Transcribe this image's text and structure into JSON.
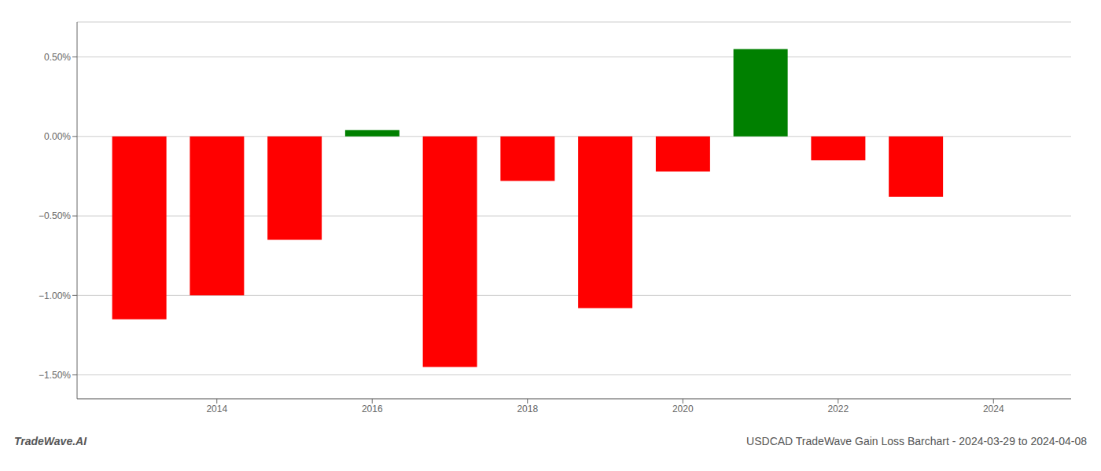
{
  "chart_data": {
    "type": "bar",
    "title": "USDCAD TradeWave Gain Loss Barchart - 2024-03-29 to 2024-04-08",
    "annotations": [
      "TradeWave.AI"
    ],
    "x": [
      2013,
      2014,
      2015,
      2016,
      2017,
      2018,
      2019,
      2020,
      2021,
      2022,
      2023
    ],
    "values": [
      -1.15,
      -1.0,
      -0.65,
      0.04,
      -1.45,
      -0.28,
      -1.08,
      -0.22,
      0.55,
      -0.15,
      -0.38
    ],
    "colors": [
      "#ff0000",
      "#ff0000",
      "#ff0000",
      "#008000",
      "#ff0000",
      "#ff0000",
      "#ff0000",
      "#ff0000",
      "#008000",
      "#ff0000",
      "#ff0000"
    ],
    "xlim": [
      2012.2,
      2025.0
    ],
    "xticks": [
      2014,
      2016,
      2018,
      2020,
      2022,
      2024
    ],
    "ylim": [
      -1.65,
      0.72
    ],
    "yticks": [
      {
        "value": -1.5,
        "label": "−1.50%"
      },
      {
        "value": -1.0,
        "label": "−1.00%"
      },
      {
        "value": -0.5,
        "label": "−0.50%"
      },
      {
        "value": 0.0,
        "label": "0.00%"
      },
      {
        "value": 0.5,
        "label": "0.50%"
      }
    ],
    "grid": true
  }
}
